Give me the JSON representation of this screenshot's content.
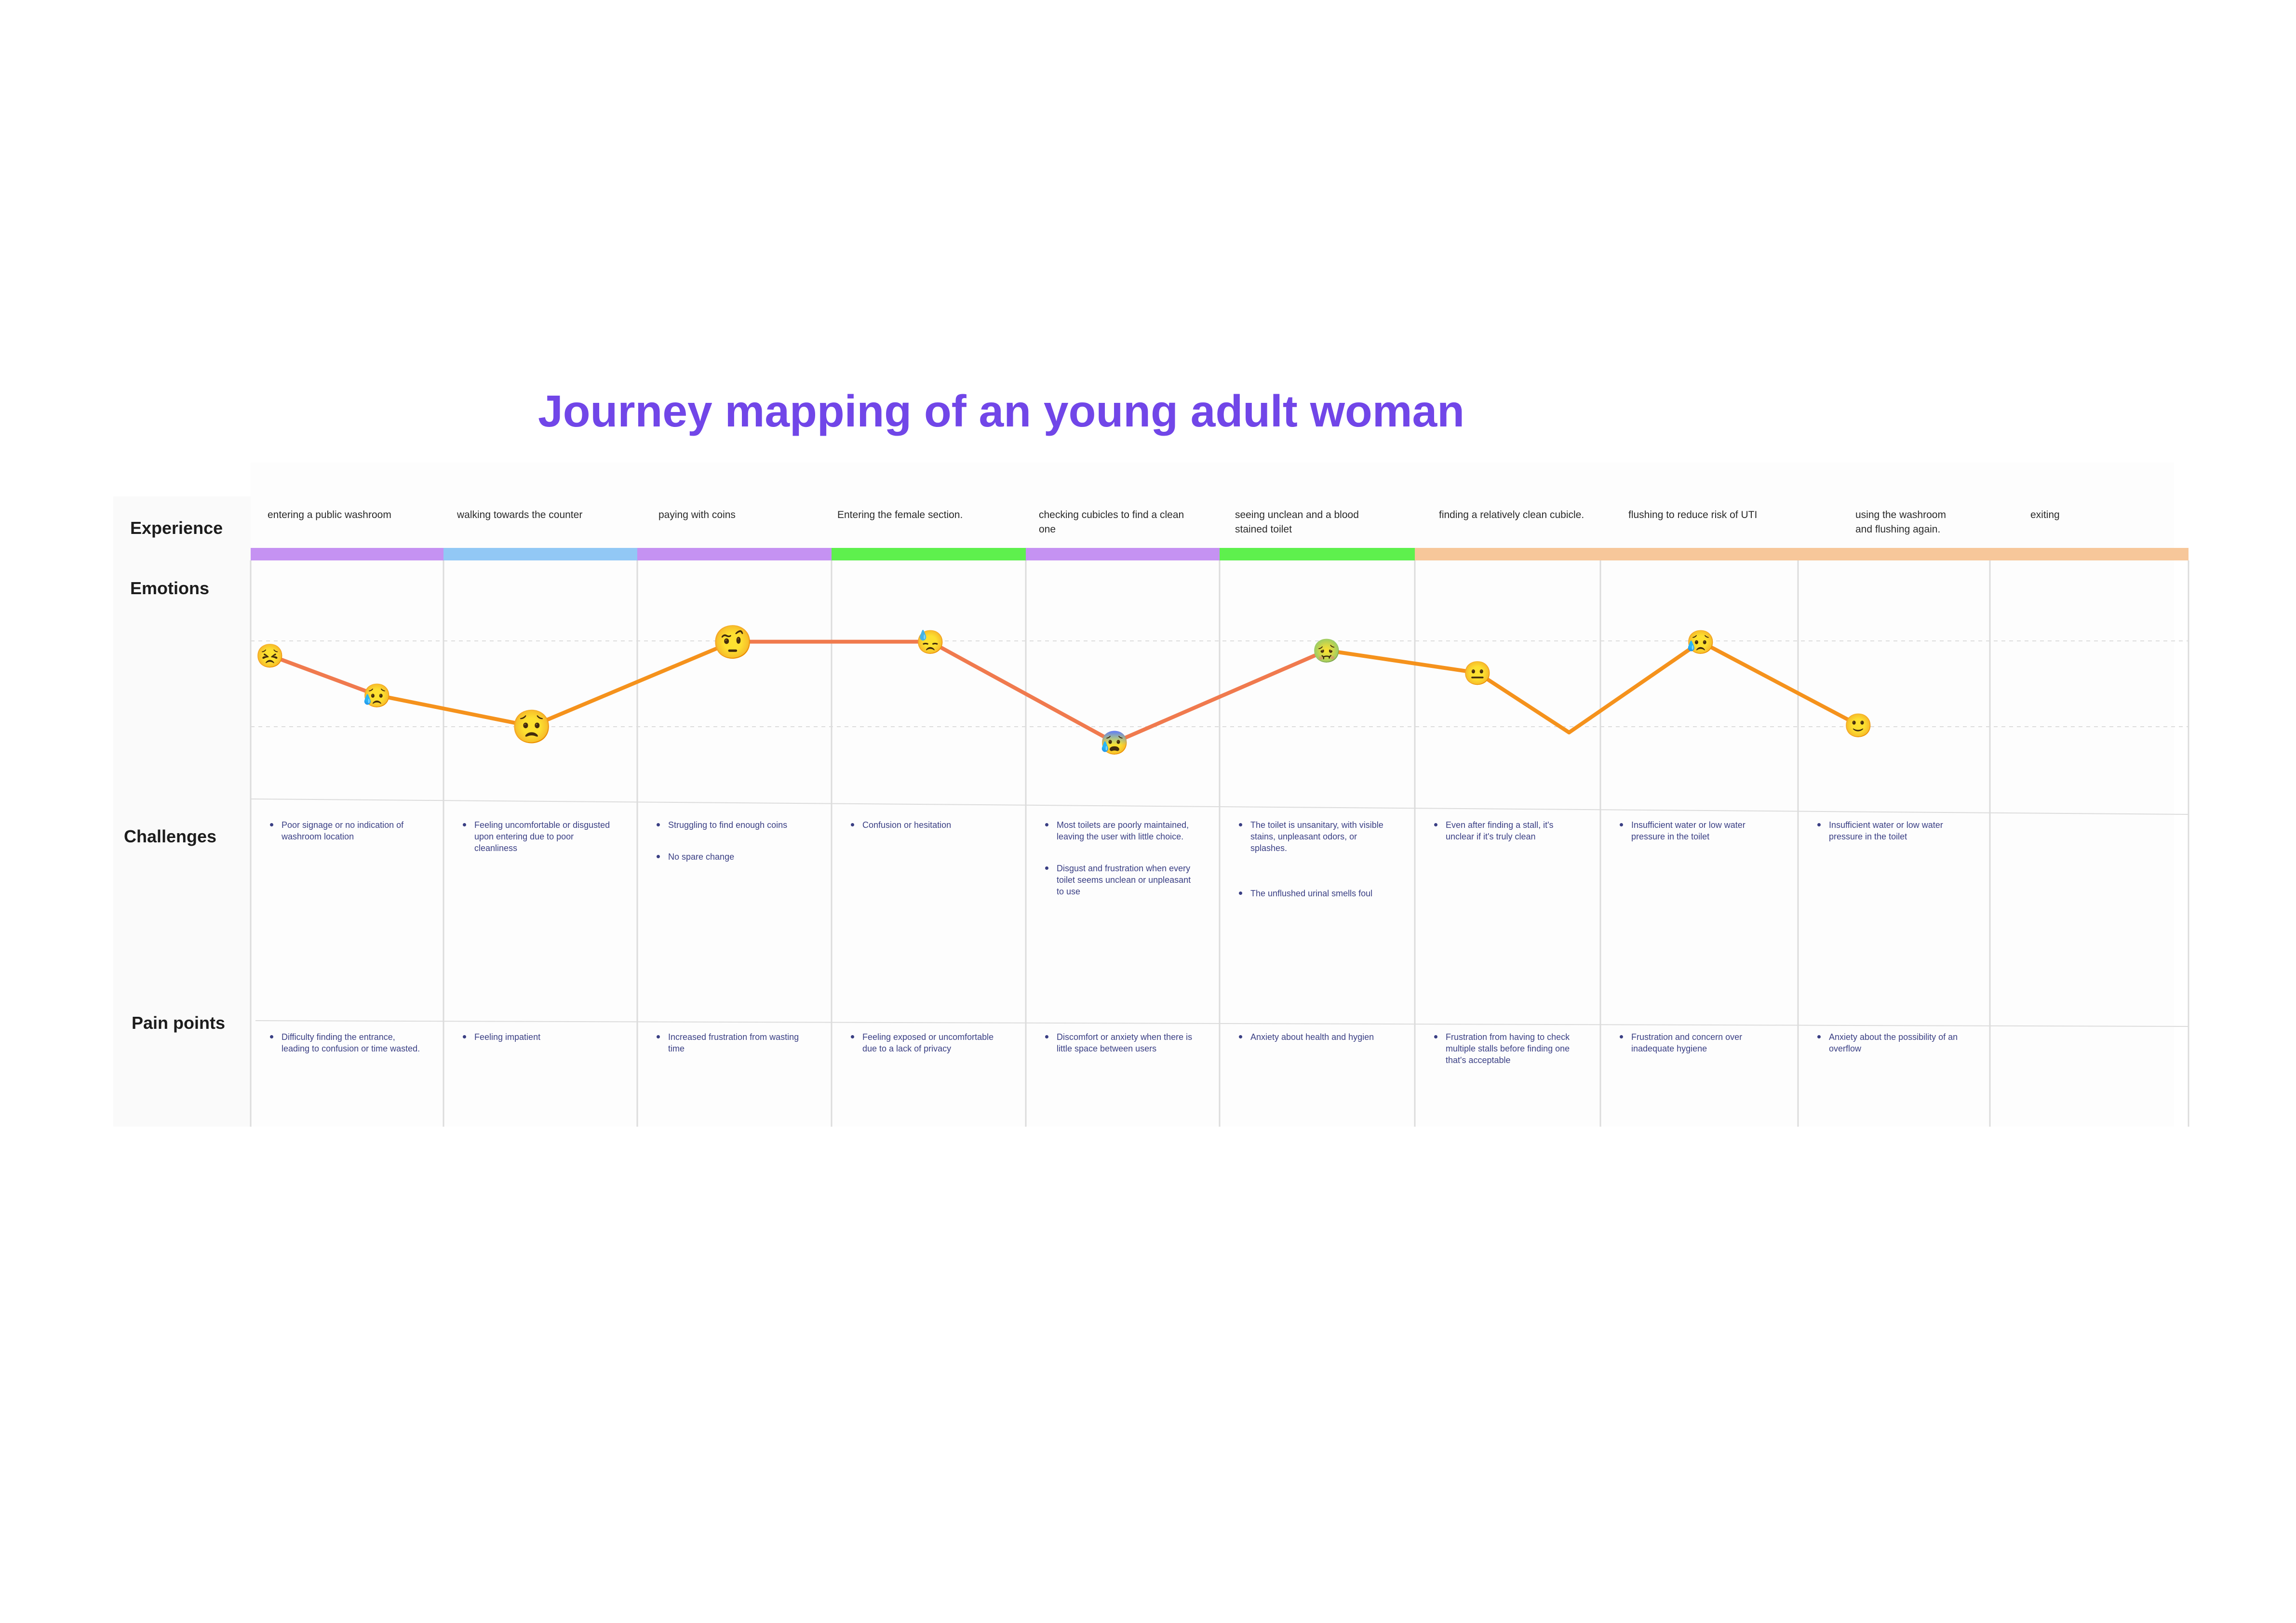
{
  "title": "Journey mapping of an young adult woman",
  "row_labels": {
    "experience": "Experience",
    "emotions": "Emotions",
    "challenges": "Challenges",
    "pain_points": "Pain points"
  },
  "stages": [
    "entering a public washroom",
    "walking towards the counter",
    "paying with coins",
    "Entering the female section.",
    "checking cubicles to find a clean one",
    "seeing unclean and a blood stained toilet",
    "finding a relatively clean cubicle.",
    "flushing to reduce risk of UTI",
    "using the washroom and flushing again.",
    "exiting"
  ],
  "stage_colors": [
    "#c592f2",
    "#92c8f5",
    "#c592f2",
    "#5ef04d",
    "#c592f2",
    "#5ef04d",
    "#f7c79a",
    "#f7c79a",
    "#f7c79a",
    "#f7c79a"
  ],
  "challenges": [
    [
      "Poor signage or no indication of washroom location"
    ],
    [
      "Feeling uncomfortable or disgusted upon entering due to poor cleanliness"
    ],
    [
      "Struggling to find enough coins",
      "No spare change"
    ],
    [
      "Confusion or hesitation"
    ],
    [
      "Most toilets are poorly maintained, leaving the user with little choice.",
      "Disgust and frustration when every toilet seems unclean or unpleasant to use"
    ],
    [
      "The toilet is unsanitary, with visible stains, unpleasant odors, or splashes.",
      "The unflushed urinal smells foul"
    ],
    [
      "Even after finding a stall, it's unclear if it's truly clean"
    ],
    [
      "Insufficient water or low water pressure in the toilet"
    ],
    [
      "Insufficient water or low water pressure in the toilet"
    ],
    []
  ],
  "pain_points": [
    [
      "Difficulty finding the entrance, leading to confusion or time wasted."
    ],
    [
      "Feeling impatient"
    ],
    [
      "Increased frustration from wasting time"
    ],
    [
      "Feeling exposed or uncomfortable due to a lack of privacy"
    ],
    [
      "Discomfort or anxiety when there is little space between users"
    ],
    [
      "Anxiety about health and hygien"
    ],
    [
      "Frustration from having to check multiple stalls before finding one that's acceptable"
    ],
    [
      "Frustration and concern over inadequate hygiene"
    ],
    [
      "Anxiety about the possibility of an overflow"
    ],
    []
  ],
  "emotion_points": [
    {
      "emoji": "😣",
      "level": 0.62
    },
    {
      "emoji": "😥",
      "level": 0.3
    },
    {
      "emoji": "😟",
      "level": 0.05
    },
    {
      "emoji": "🤨",
      "level": 0.73
    },
    {
      "emoji": "😓",
      "level": 0.73
    },
    {
      "emoji": "😰",
      "level": -0.08
    },
    {
      "emoji": "🤢",
      "level": 0.66
    },
    {
      "emoji": "😐",
      "level": 0.48
    },
    {
      "emoji": "",
      "level": 0.0
    },
    {
      "emoji": "😥",
      "level": 0.73
    },
    {
      "emoji": "🙂",
      "level": 0.06
    }
  ],
  "colors": {
    "title": "#7146e8",
    "line_primary": "#f07a4e",
    "line_secondary": "#f5921c",
    "bullet_text": "#3a3f84",
    "panel": "#fafafa",
    "grid": "#dcdcdc"
  }
}
